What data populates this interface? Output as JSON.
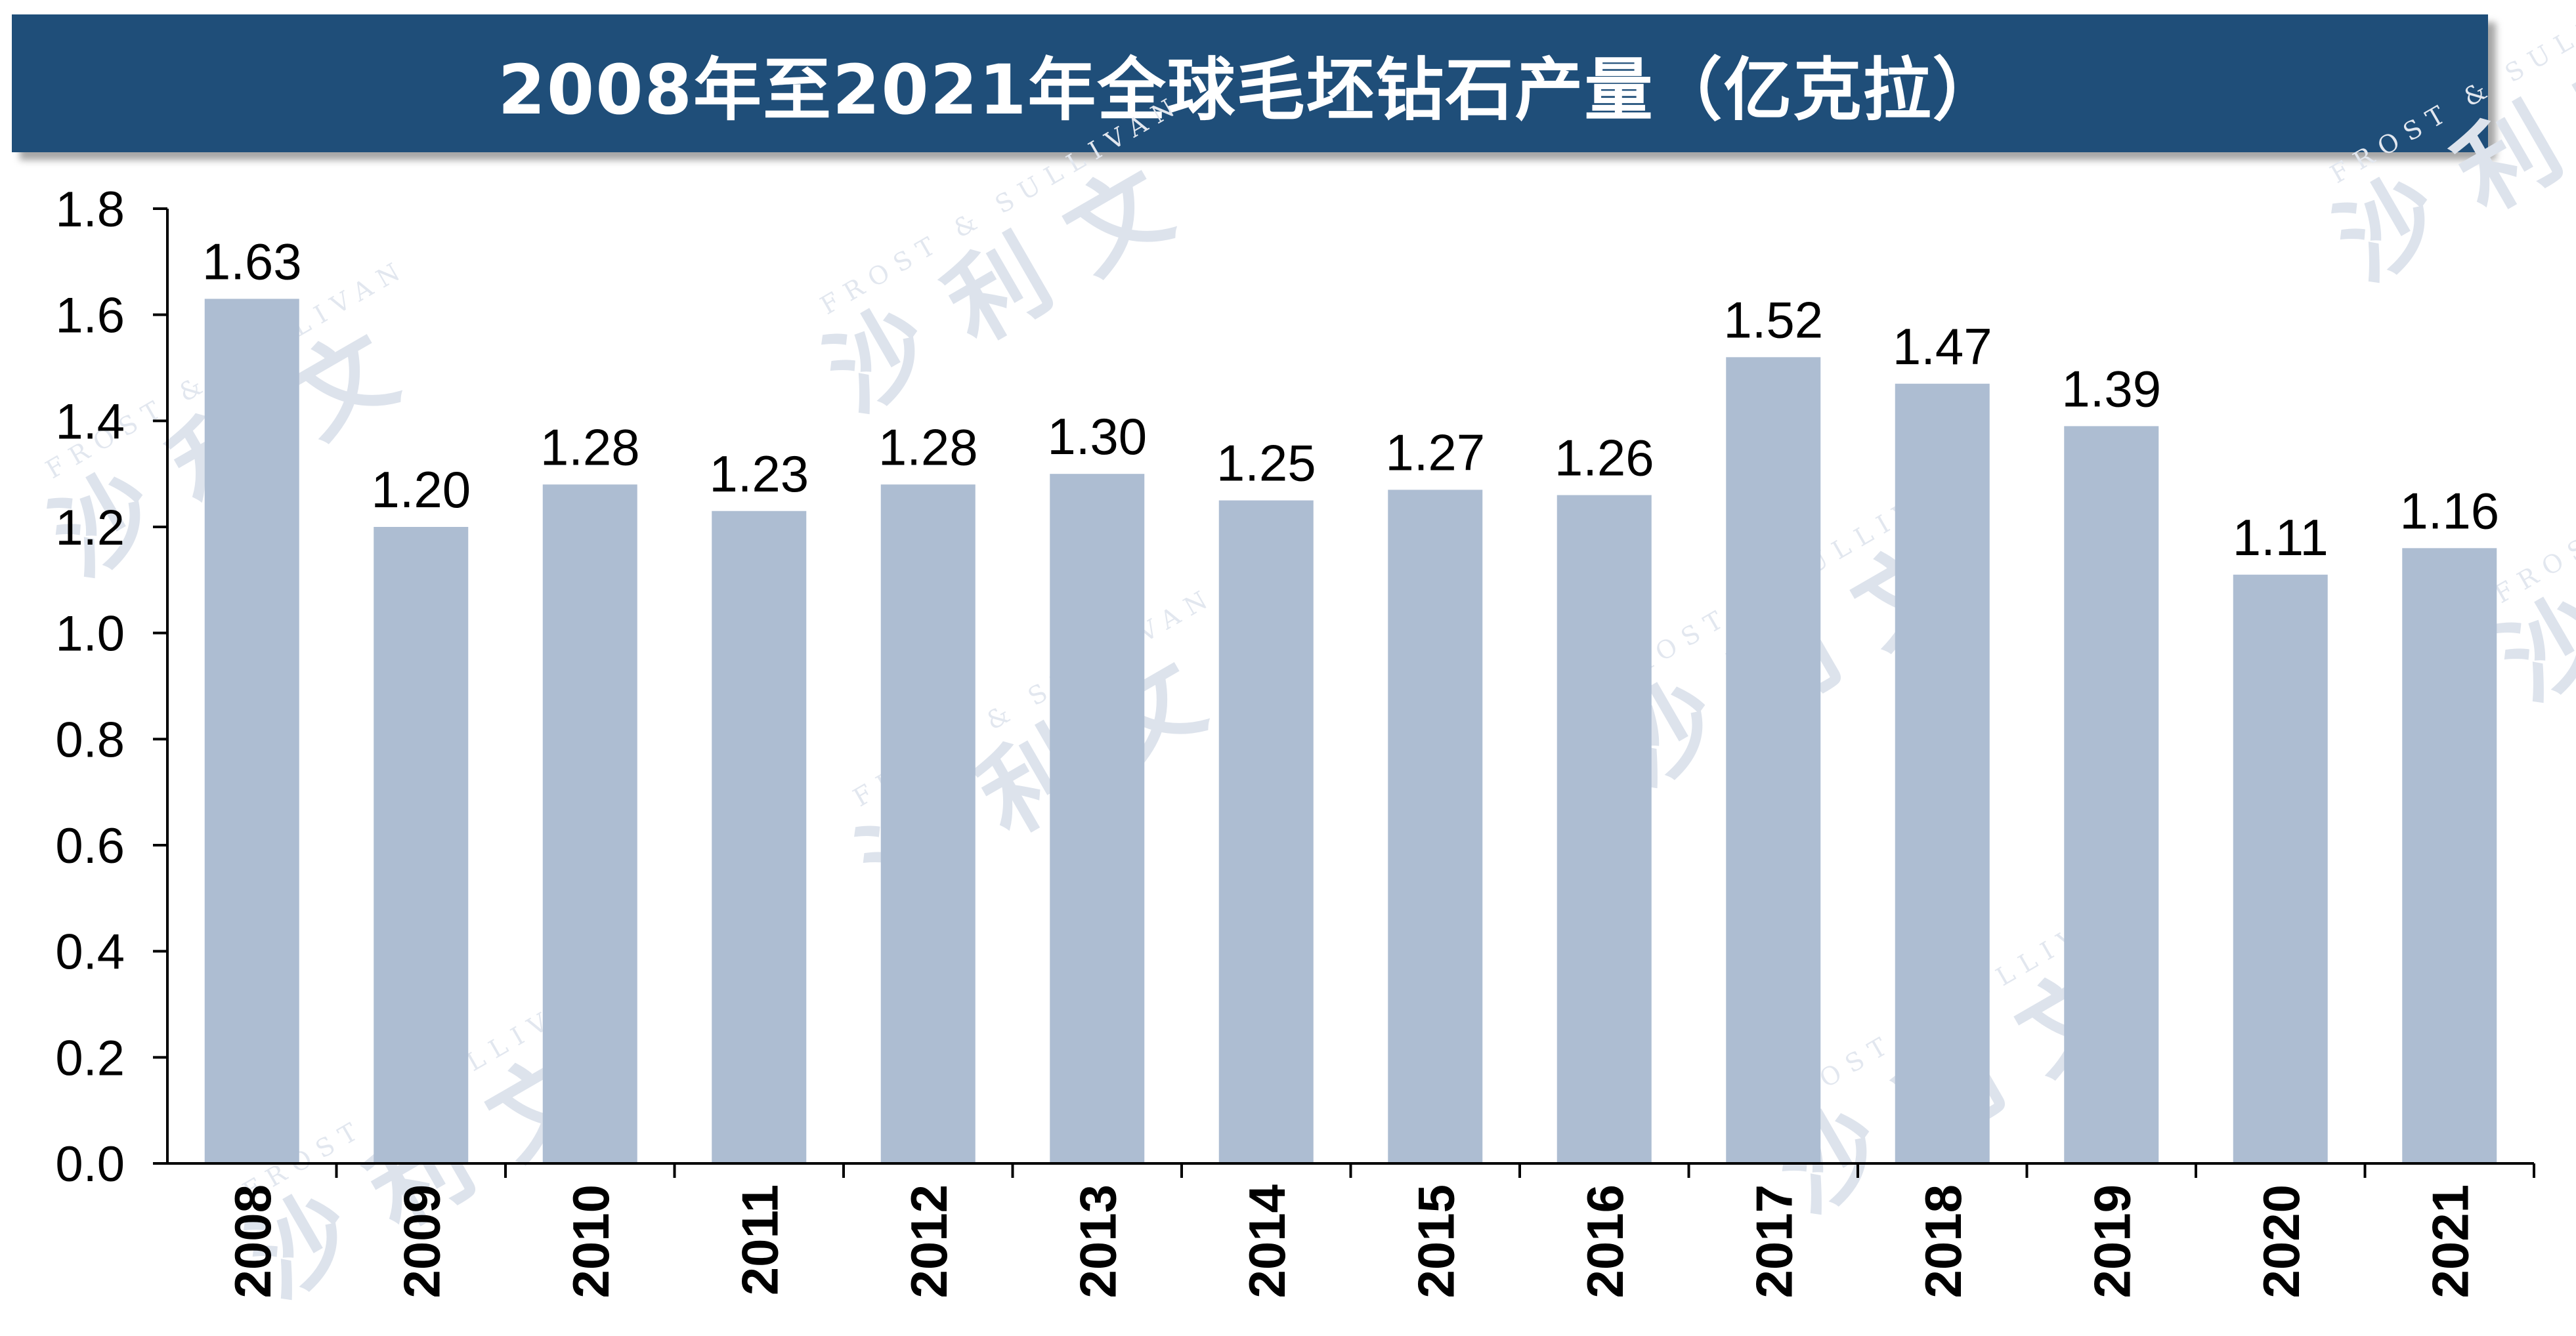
{
  "colors": {
    "title_bg": "#1f4e79",
    "title_text": "#ffffff",
    "bar": "#adbdd2",
    "axis": "#000000",
    "watermark": "#dde3ec"
  },
  "watermark": {
    "cn": "沙利文",
    "en": "FROST & SULLIVAN"
  },
  "chart_data": {
    "type": "bar",
    "title": "2008年至2021年全球毛坯钻石产量（亿克拉）",
    "categories": [
      "2008",
      "2009",
      "2010",
      "2011",
      "2012",
      "2013",
      "2014",
      "2015",
      "2016",
      "2017",
      "2018",
      "2019",
      "2020",
      "2021"
    ],
    "values": [
      1.63,
      1.2,
      1.28,
      1.23,
      1.28,
      1.3,
      1.25,
      1.27,
      1.26,
      1.52,
      1.47,
      1.39,
      1.11,
      1.16
    ],
    "value_labels": [
      "1.63",
      "1.20",
      "1.28",
      "1.23",
      "1.28",
      "1.30",
      "1.25",
      "1.27",
      "1.26",
      "1.52",
      "1.47",
      "1.39",
      "1.11",
      "1.16"
    ],
    "ylim": [
      0,
      1.8
    ],
    "y_ticks": [
      "0.0",
      "0.2",
      "0.4",
      "0.6",
      "0.8",
      "1.0",
      "1.2",
      "1.4",
      "1.6",
      "1.8"
    ],
    "xlabel": "",
    "ylabel": "",
    "grid": false,
    "legend": "none"
  }
}
